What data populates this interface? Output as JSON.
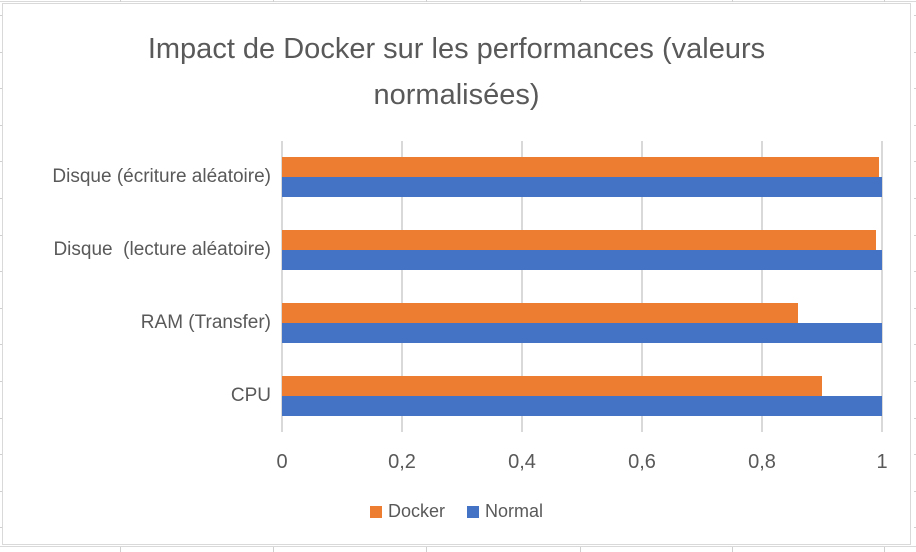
{
  "chart_data": {
    "type": "bar",
    "orientation": "horizontal",
    "title": "Impact de Docker sur les performances (valeurs normalisées)",
    "categories": [
      "Disque (écriture aléatoire)",
      "Disque  (lecture aléatoire)",
      "RAM (Transfer)",
      "CPU"
    ],
    "category_order": "top-to-bottom",
    "series": [
      {
        "name": "Docker",
        "color": "#ED7D31",
        "values": [
          0.995,
          0.99,
          0.86,
          0.9
        ]
      },
      {
        "name": "Normal",
        "color": "#4472C4",
        "values": [
          1.0,
          1.0,
          1.0,
          1.0
        ]
      }
    ],
    "xlabel": "",
    "ylabel": "",
    "xlim": [
      0,
      1
    ],
    "x_ticks": [
      0,
      0.2,
      0.4,
      0.6,
      0.8,
      1
    ],
    "x_tick_labels": [
      "0",
      "0,2",
      "0,4",
      "0,6",
      "0,8",
      "1"
    ],
    "grid": true,
    "legend_position": "bottom",
    "colors": {
      "text": "#595959",
      "gridline": "#D9D9D9",
      "chart_border": "#D9D9D9",
      "background": "#FFFFFF"
    }
  }
}
